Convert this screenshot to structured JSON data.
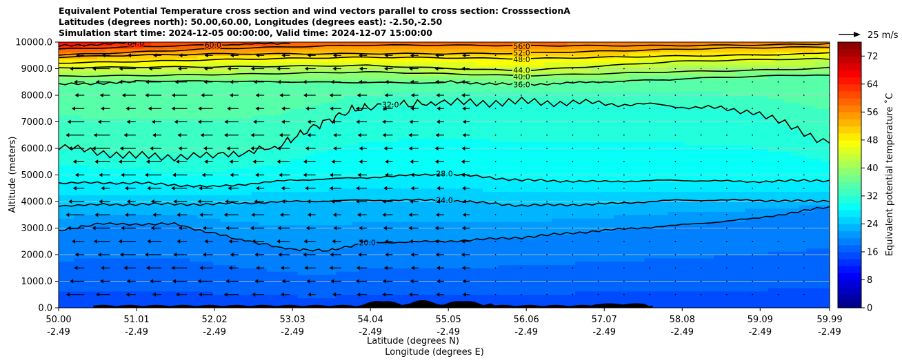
{
  "chart_data": {
    "type": "contour",
    "title_lines": [
      "Equivalent Potential Temperature cross section and wind vectors parallel to cross section: CrosssectionA",
      "Latitudes (degrees north): 50.00,60.00, Longitudes (degrees east): -2.50,-2.50",
      "Simulation start time: 2024-12-05 00:00:00, Valid time: 2024-12-07 15:00:00"
    ],
    "xlabel_line1": "Latitude (degrees N)",
    "xlabel_line2": "Longitude (degrees E)",
    "ylabel": "Altitude (meters)",
    "x_ticks": [
      {
        "lat": "50.00",
        "lon": "-2.49"
      },
      {
        "lat": "51.01",
        "lon": "-2.49"
      },
      {
        "lat": "52.02",
        "lon": "-2.49"
      },
      {
        "lat": "53.03",
        "lon": "-2.49"
      },
      {
        "lat": "54.04",
        "lon": "-2.49"
      },
      {
        "lat": "55.05",
        "lon": "-2.49"
      },
      {
        "lat": "56.06",
        "lon": "-2.49"
      },
      {
        "lat": "57.07",
        "lon": "-2.49"
      },
      {
        "lat": "58.08",
        "lon": "-2.49"
      },
      {
        "lat": "59.09",
        "lon": "-2.49"
      },
      {
        "lat": "59.99",
        "lon": "-2.49"
      }
    ],
    "xlim": [
      50.0,
      59.99
    ],
    "ylim": [
      0,
      10000
    ],
    "y_ticks": [
      "0.0",
      "1000.0",
      "2000.0",
      "3000.0",
      "4000.0",
      "5000.0",
      "6000.0",
      "7000.0",
      "8000.0",
      "9000.0",
      "10000.0"
    ],
    "colorbar": {
      "label": "Equivalent potential temperature ˚C",
      "range": [
        0,
        76
      ],
      "step": 2,
      "ticks": [
        "0",
        "8",
        "16",
        "24",
        "32",
        "40",
        "48",
        "56",
        "64",
        "72"
      ]
    },
    "quiver_key": {
      "label": "25 m/s"
    },
    "contours": [
      {
        "level": "20.0",
        "points": [
          [
            50.0,
            2900
          ],
          [
            50.5,
            3150
          ],
          [
            51.5,
            3150
          ],
          [
            52.3,
            2600
          ],
          [
            53.0,
            2200
          ],
          [
            53.5,
            2150
          ],
          [
            54.0,
            2450
          ],
          [
            55.0,
            2500
          ],
          [
            56.0,
            2650
          ],
          [
            57.0,
            2900
          ],
          [
            58.0,
            3100
          ],
          [
            59.0,
            3350
          ],
          [
            59.99,
            3800
          ]
        ]
      },
      {
        "level": "24.0",
        "points": [
          [
            50.0,
            3850
          ],
          [
            51.0,
            3900
          ],
          [
            52.0,
            3900
          ],
          [
            53.0,
            4000
          ],
          [
            54.0,
            4050
          ],
          [
            55.0,
            4050
          ],
          [
            56.0,
            3850
          ],
          [
            57.0,
            3900
          ],
          [
            58.0,
            4050
          ],
          [
            59.0,
            4050
          ],
          [
            59.99,
            4000
          ]
        ]
      },
      {
        "level": "28.0",
        "points": [
          [
            50.0,
            4700
          ],
          [
            51.0,
            4700
          ],
          [
            52.0,
            4550
          ],
          [
            53.0,
            4800
          ],
          [
            54.0,
            4900
          ],
          [
            55.0,
            5050
          ],
          [
            56.0,
            4800
          ],
          [
            57.0,
            4750
          ],
          [
            58.0,
            4800
          ],
          [
            59.0,
            4750
          ],
          [
            59.99,
            4800
          ]
        ]
      },
      {
        "level": "32.0",
        "points": [
          [
            50.0,
            6050
          ],
          [
            51.0,
            5700
          ],
          [
            52.0,
            5700
          ],
          [
            52.8,
            6000
          ],
          [
            53.3,
            6800
          ],
          [
            53.8,
            7450
          ],
          [
            54.3,
            7650
          ],
          [
            55.0,
            7700
          ],
          [
            56.0,
            7750
          ],
          [
            57.0,
            7700
          ],
          [
            58.0,
            7600
          ],
          [
            59.0,
            7400
          ],
          [
            59.99,
            6200
          ]
        ]
      },
      {
        "level": "36.0",
        "points": [
          [
            50.0,
            8400
          ],
          [
            51.0,
            8500
          ],
          [
            53.0,
            8500
          ],
          [
            55.0,
            8500
          ],
          [
            56.0,
            8400
          ],
          [
            57.0,
            8500
          ],
          [
            58.0,
            8600
          ],
          [
            59.99,
            8750
          ]
        ]
      },
      {
        "level": "40.0",
        "points": [
          [
            50.0,
            8750
          ],
          [
            52.0,
            8800
          ],
          [
            54.0,
            8850
          ],
          [
            56.0,
            8700
          ],
          [
            58.0,
            8900
          ],
          [
            59.99,
            9050
          ]
        ]
      },
      {
        "level": "44.0",
        "points": [
          [
            50.0,
            9000
          ],
          [
            52.0,
            9050
          ],
          [
            54.0,
            9150
          ],
          [
            56.0,
            8950
          ],
          [
            58.0,
            9250
          ],
          [
            59.99,
            9350
          ]
        ]
      },
      {
        "level": "48.0",
        "points": [
          [
            50.0,
            9250
          ],
          [
            52.0,
            9350
          ],
          [
            54.0,
            9400
          ],
          [
            56.0,
            9350
          ],
          [
            58.0,
            9500
          ],
          [
            59.99,
            9600
          ]
        ]
      },
      {
        "level": "52.0",
        "points": [
          [
            50.0,
            9400
          ],
          [
            52.0,
            9550
          ],
          [
            54.0,
            9600
          ],
          [
            56.0,
            9600
          ],
          [
            58.0,
            9700
          ],
          [
            59.99,
            9800
          ]
        ]
      },
      {
        "level": "56.0",
        "points": [
          [
            50.0,
            9550
          ],
          [
            52.0,
            9750
          ],
          [
            54.0,
            9850
          ],
          [
            56.0,
            9850
          ],
          [
            58.0,
            9900
          ],
          [
            59.99,
            9950
          ]
        ]
      },
      {
        "level": "60.0",
        "points": [
          [
            50.0,
            9700
          ],
          [
            52.0,
            9900
          ],
          [
            53.0,
            9950
          ]
        ]
      },
      {
        "level": "64.0",
        "points": [
          [
            50.0,
            9850
          ],
          [
            51.0,
            9980
          ]
        ]
      }
    ]
  }
}
